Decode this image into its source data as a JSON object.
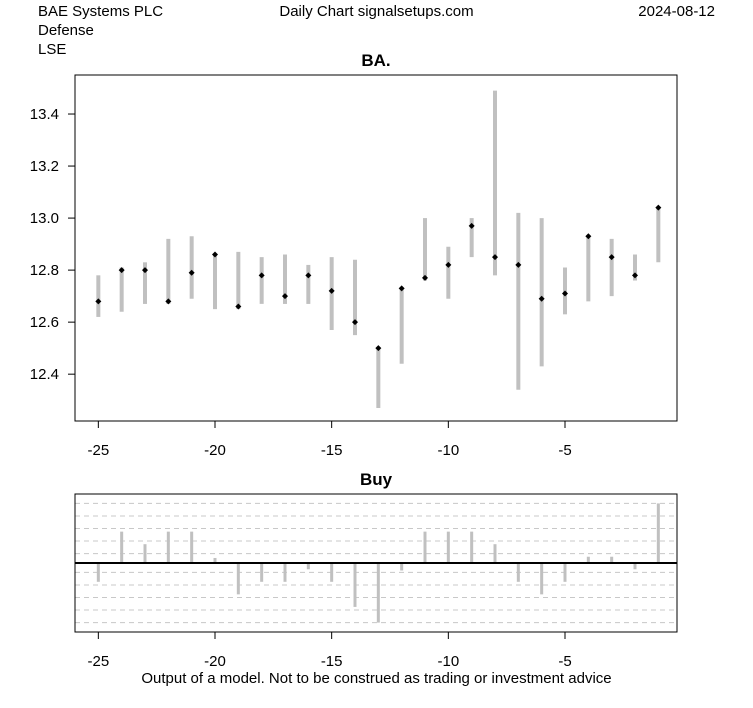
{
  "header": {
    "company": "BAE Systems PLC",
    "sector": "Defense",
    "exchange": "LSE",
    "center": "Daily Chart signalsetups.com",
    "date": "2024-08-12"
  },
  "footer": "Output of a model. Not to be construed as trading or investment advice",
  "chart_data": [
    {
      "type": "ohlc-range",
      "title": "BA.",
      "xlim": [
        -26,
        -0.2
      ],
      "ylim": [
        12.22,
        13.55
      ],
      "x_ticks": [
        -25,
        -20,
        -15,
        -10,
        -5
      ],
      "y_ticks": [
        12.4,
        12.6,
        12.8,
        13.0,
        13.2,
        13.4
      ],
      "x_tick_labels": [
        "-25",
        "-20",
        "-15",
        "-10",
        "-5"
      ],
      "y_tick_labels": [
        "12.4",
        "12.6",
        "12.8",
        "13.0",
        "13.2",
        "13.4"
      ],
      "range_color": "#c0c0c0",
      "point_color": "#000000",
      "bars": [
        {
          "x": -25,
          "low": 12.62,
          "high": 12.78,
          "close": 12.68
        },
        {
          "x": -24,
          "low": 12.64,
          "high": 12.81,
          "close": 12.8
        },
        {
          "x": -23,
          "low": 12.67,
          "high": 12.83,
          "close": 12.8
        },
        {
          "x": -22,
          "low": 12.67,
          "high": 12.92,
          "close": 12.68
        },
        {
          "x": -21,
          "low": 12.69,
          "high": 12.93,
          "close": 12.79
        },
        {
          "x": -20,
          "low": 12.65,
          "high": 12.86,
          "close": 12.86
        },
        {
          "x": -19,
          "low": 12.65,
          "high": 12.87,
          "close": 12.66
        },
        {
          "x": -18,
          "low": 12.67,
          "high": 12.85,
          "close": 12.78
        },
        {
          "x": -17,
          "low": 12.67,
          "high": 12.86,
          "close": 12.7
        },
        {
          "x": -16,
          "low": 12.67,
          "high": 12.82,
          "close": 12.78
        },
        {
          "x": -15,
          "low": 12.57,
          "high": 12.85,
          "close": 12.72
        },
        {
          "x": -14,
          "low": 12.55,
          "high": 12.84,
          "close": 12.6
        },
        {
          "x": -13,
          "low": 12.27,
          "high": 12.5,
          "close": 12.5
        },
        {
          "x": -12,
          "low": 12.44,
          "high": 12.73,
          "close": 12.73
        },
        {
          "x": -11,
          "low": 12.76,
          "high": 13.0,
          "close": 12.77
        },
        {
          "x": -10,
          "low": 12.69,
          "high": 12.89,
          "close": 12.82
        },
        {
          "x": -9,
          "low": 12.85,
          "high": 13.0,
          "close": 12.97
        },
        {
          "x": -8,
          "low": 12.78,
          "high": 13.49,
          "close": 12.85
        },
        {
          "x": -7,
          "low": 12.34,
          "high": 13.02,
          "close": 12.82
        },
        {
          "x": -6,
          "low": 12.43,
          "high": 13.0,
          "close": 12.69
        },
        {
          "x": -5,
          "low": 12.63,
          "high": 12.81,
          "close": 12.71
        },
        {
          "x": -4,
          "low": 12.68,
          "high": 12.93,
          "close": 12.93
        },
        {
          "x": -3,
          "low": 12.7,
          "high": 12.92,
          "close": 12.85
        },
        {
          "x": -2,
          "low": 12.76,
          "high": 12.86,
          "close": 12.78
        },
        {
          "x": -1,
          "low": 12.83,
          "high": 13.04,
          "close": 13.04
        }
      ]
    },
    {
      "type": "bar",
      "title": "Buy",
      "xlim": [
        -26,
        -0.2
      ],
      "ylim": [
        -1.1,
        1.1
      ],
      "x_ticks": [
        -25,
        -20,
        -15,
        -10,
        -5
      ],
      "x_tick_labels": [
        "-25",
        "-20",
        "-15",
        "-10",
        "-5"
      ],
      "grid_levels": [
        -0.95,
        -0.75,
        -0.55,
        -0.35,
        -0.15,
        0.15,
        0.35,
        0.55,
        0.75,
        0.95
      ],
      "bar_color": "#c0c0c0",
      "zero_line_color": "#000000",
      "bars": [
        {
          "x": -25,
          "value": -0.3
        },
        {
          "x": -24,
          "value": 0.5
        },
        {
          "x": -23,
          "value": 0.3
        },
        {
          "x": -22,
          "value": 0.5
        },
        {
          "x": -21,
          "value": 0.5
        },
        {
          "x": -20,
          "value": 0.08
        },
        {
          "x": -19,
          "value": -0.5
        },
        {
          "x": -18,
          "value": -0.3
        },
        {
          "x": -17,
          "value": -0.3
        },
        {
          "x": -16,
          "value": -0.1
        },
        {
          "x": -15,
          "value": -0.3
        },
        {
          "x": -14,
          "value": -0.7
        },
        {
          "x": -13,
          "value": -0.95
        },
        {
          "x": -12,
          "value": -0.12
        },
        {
          "x": -11,
          "value": 0.5
        },
        {
          "x": -10,
          "value": 0.5
        },
        {
          "x": -9,
          "value": 0.5
        },
        {
          "x": -8,
          "value": 0.3
        },
        {
          "x": -7,
          "value": -0.3
        },
        {
          "x": -6,
          "value": -0.5
        },
        {
          "x": -5,
          "value": -0.3
        },
        {
          "x": -4,
          "value": 0.1
        },
        {
          "x": -3,
          "value": 0.1
        },
        {
          "x": -2,
          "value": -0.1
        },
        {
          "x": -1,
          "value": 0.95
        }
      ]
    }
  ]
}
